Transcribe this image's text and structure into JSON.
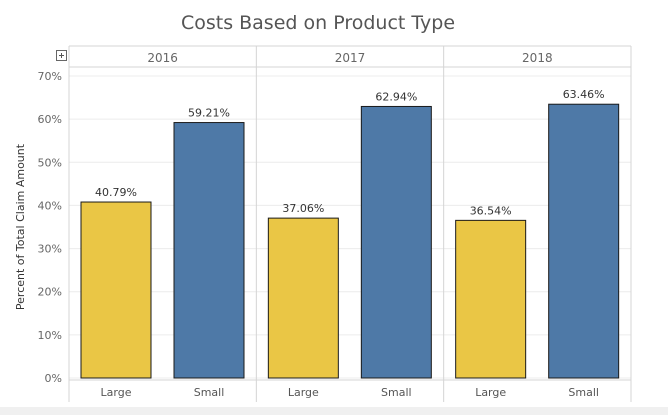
{
  "chart_data": {
    "type": "bar",
    "title": "Costs Based on Product Type",
    "ylabel": "Percent of Total Claim Amount",
    "xlabel": "",
    "ylim": [
      0,
      70
    ],
    "yticks": [
      "0%",
      "10%",
      "20%",
      "30%",
      "40%",
      "50%",
      "60%",
      "70%"
    ],
    "panels": [
      "2016",
      "2017",
      "2018"
    ],
    "categories": [
      "Large",
      "Small"
    ],
    "colors": {
      "Large": "#EAC645",
      "Small": "#4E79A7"
    },
    "values": [
      [
        40.79,
        59.21
      ],
      [
        37.06,
        62.94
      ],
      [
        36.54,
        63.46
      ]
    ],
    "value_labels": [
      [
        "40.79%",
        "59.21%"
      ],
      [
        "37.06%",
        "62.94%"
      ],
      [
        "36.54%",
        "63.46%"
      ]
    ]
  }
}
